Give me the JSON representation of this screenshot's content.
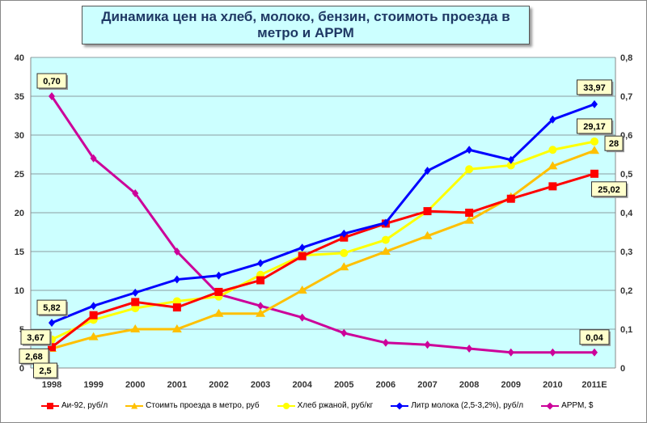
{
  "chart_data": {
    "type": "line",
    "title": "Динамика цен на хлеб, молоко, бензин, стоимоть проезда в метро и АРРМ",
    "categories": [
      "1998",
      "1999",
      "2000",
      "2001",
      "2002",
      "2003",
      "2004",
      "2005",
      "2006",
      "2007",
      "2008",
      "2009",
      "2010",
      "2011E"
    ],
    "y_left": {
      "range": [
        0,
        40
      ],
      "ticks": [
        "0",
        "5",
        "10",
        "15",
        "20",
        "25",
        "30",
        "35",
        "40"
      ]
    },
    "y_right": {
      "range": [
        0,
        0.8
      ],
      "ticks": [
        "0",
        "0,1",
        "0,2",
        "0,3",
        "0,4",
        "0,5",
        "0,6",
        "0,7",
        "0,8"
      ]
    },
    "grid": true,
    "legend_position": "bottom",
    "series": [
      {
        "name": "Аи-92,  руб/л",
        "color": "#ff0000",
        "marker": "square",
        "axis": "left",
        "values": [
          2.68,
          6.8,
          8.5,
          7.8,
          9.8,
          11.3,
          14.4,
          16.8,
          18.6,
          20.2,
          20.0,
          21.8,
          23.4,
          25.02
        ]
      },
      {
        "name": "Стоимть проезда в метро, руб",
        "color": "#ffc000",
        "marker": "triangle",
        "axis": "left",
        "values": [
          2.5,
          4,
          5,
          5,
          7,
          7,
          10,
          13,
          15,
          17,
          19,
          22,
          26,
          28
        ]
      },
      {
        "name": "Хлеб ржаной, руб/кг",
        "color": "#ffff00",
        "marker": "circle",
        "axis": "left",
        "values": [
          3.67,
          6.2,
          7.7,
          8.6,
          9.2,
          12,
          14.5,
          14.8,
          16.5,
          20.2,
          25.6,
          26.1,
          28.1,
          29.17
        ]
      },
      {
        "name": "Литр молока (2,5-3,2%), руб/л",
        "color": "#0000ff",
        "marker": "diamond",
        "axis": "left",
        "values": [
          5.82,
          8,
          9.7,
          11.4,
          11.9,
          13.5,
          15.5,
          17.3,
          18.7,
          25.4,
          28.1,
          26.8,
          32,
          33.97
        ]
      },
      {
        "name": "АРРМ, $",
        "color": "#cc0099",
        "marker": "diamond",
        "axis": "right",
        "values": [
          0.7,
          0.54,
          0.45,
          0.3,
          0.19,
          0.16,
          0.13,
          0.09,
          0.065,
          0.06,
          0.05,
          0.04,
          0.04,
          0.04
        ]
      }
    ],
    "annotations": [
      {
        "text": "0,70",
        "series": 4,
        "index": 0
      },
      {
        "text": "5,82",
        "series": 3,
        "index": 0
      },
      {
        "text": "3,67",
        "series": 2,
        "index": 0
      },
      {
        "text": "2,68",
        "series": 0,
        "index": 0
      },
      {
        "text": "2,5",
        "series": 1,
        "index": 0
      },
      {
        "text": "33,97",
        "series": 3,
        "index": 13
      },
      {
        "text": "29,17",
        "series": 2,
        "index": 13
      },
      {
        "text": "28",
        "series": 1,
        "index": 13
      },
      {
        "text": "25,02",
        "series": 0,
        "index": 13
      },
      {
        "text": "0,04",
        "series": 4,
        "index": 13
      }
    ]
  }
}
